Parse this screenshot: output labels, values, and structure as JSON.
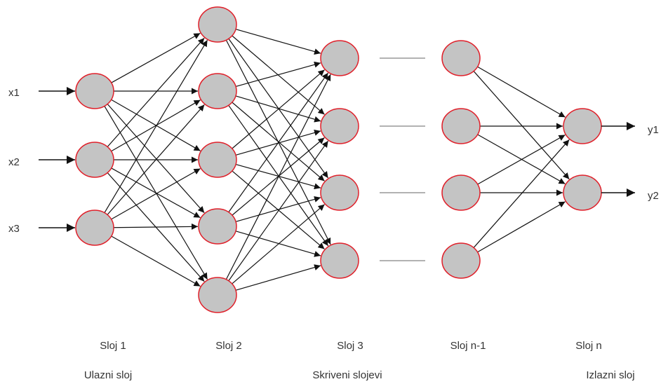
{
  "colors": {
    "node_fill": "#c4c4c4",
    "node_stroke": "#e0202a",
    "edge": "#111111",
    "ellipsis_line": "#999999",
    "text": "#333333"
  },
  "inputs": [
    "x1",
    "x2",
    "x3"
  ],
  "outputs": [
    "y1",
    "y2"
  ],
  "layers": [
    {
      "name": "Sloj 1",
      "nodes": 3
    },
    {
      "name": "Sloj 2",
      "nodes": 5
    },
    {
      "name": "Sloj 3",
      "nodes": 4
    },
    {
      "name": "Sloj n-1",
      "nodes": 4
    },
    {
      "name": "Sloj n",
      "nodes": 2
    }
  ],
  "groups": {
    "input": "Ulazni sloj",
    "hidden": "Skriveni slojevi",
    "output": "Izlazni sloj"
  }
}
